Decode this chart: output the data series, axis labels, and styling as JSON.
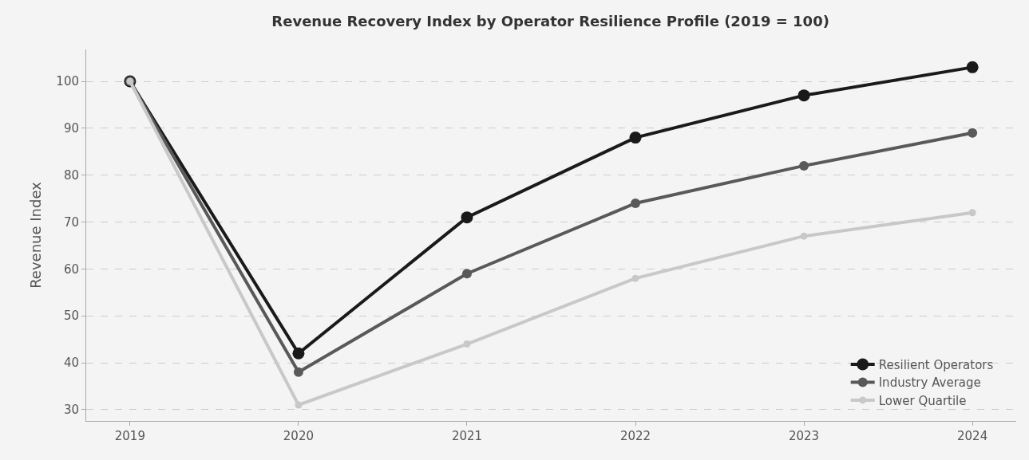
{
  "chart_data": {
    "type": "line",
    "title": "Revenue Recovery Index by Operator Resilience Profile (2019 = 100)",
    "ylabel": "Revenue Index",
    "x": [
      2019,
      2020,
      2021,
      2022,
      2023,
      2024
    ],
    "series": [
      {
        "name": "Resilient Operators",
        "color": "#1a1a1a",
        "values": [
          100,
          42,
          71,
          88,
          97,
          103
        ]
      },
      {
        "name": "Industry Average",
        "color": "#595959",
        "values": [
          100,
          38,
          59,
          74,
          82,
          89
        ]
      },
      {
        "name": "Lower Quartile",
        "color": "#c8c8c8",
        "values": [
          100,
          31,
          44,
          58,
          67,
          72
        ]
      }
    ],
    "xlim": [
      2018.74,
      2024.26
    ],
    "xticks": [
      2019,
      2020,
      2021,
      2022,
      2023,
      2024
    ],
    "ylim": [
      27.6,
      106.8
    ],
    "yticks": [
      30,
      40,
      50,
      60,
      70,
      80,
      90,
      100
    ],
    "grid": "y",
    "legend": "bottom right",
    "marker": "circle",
    "line_style": "solid"
  }
}
